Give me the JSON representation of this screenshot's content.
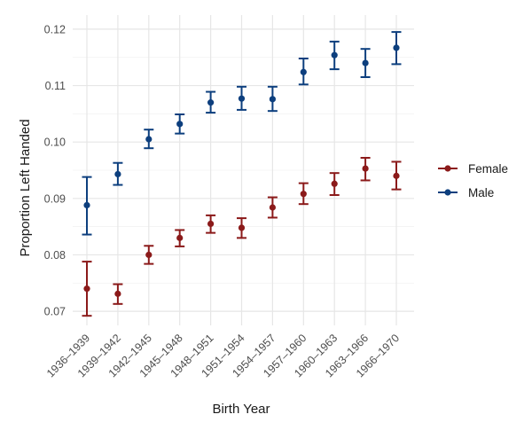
{
  "chart_data": {
    "type": "scatter",
    "title": "",
    "xlabel": "Birth Year",
    "ylabel": "Proportion Left Handed",
    "categories": [
      "1936–1939",
      "1939–1942",
      "1942–1945",
      "1945–1948",
      "1948–1951",
      "1951–1954",
      "1954–1957",
      "1957–1960",
      "1960–1963",
      "1963–1966",
      "1966–1970"
    ],
    "ylim": [
      0.0675,
      0.1225
    ],
    "yticks": [
      0.07,
      0.08,
      0.09,
      0.1,
      0.11,
      0.12
    ],
    "ytick_labels": [
      "0.07",
      "0.08",
      "0.09",
      "0.10",
      "0.11",
      "0.12"
    ],
    "grid": true,
    "legend_position": "right",
    "error_bars": true,
    "series": [
      {
        "name": "Female",
        "color": "#8b1a1a",
        "values": [
          0.074,
          0.0731,
          0.08,
          0.083,
          0.0855,
          0.0848,
          0.0884,
          0.0908,
          0.0926,
          0.0953,
          0.094
        ],
        "lower": [
          0.0692,
          0.0713,
          0.0784,
          0.0815,
          0.0839,
          0.083,
          0.0866,
          0.089,
          0.0906,
          0.0932,
          0.0916
        ],
        "upper": [
          0.0788,
          0.0748,
          0.0816,
          0.0844,
          0.087,
          0.0865,
          0.0902,
          0.0927,
          0.0945,
          0.0972,
          0.0965
        ]
      },
      {
        "name": "Male",
        "color": "#0d3f7e",
        "values": [
          0.0888,
          0.0943,
          0.1005,
          0.1032,
          0.107,
          0.1077,
          0.1076,
          0.1124,
          0.1154,
          0.114,
          0.1167
        ],
        "lower": [
          0.0836,
          0.0924,
          0.0989,
          0.1015,
          0.1052,
          0.1057,
          0.1055,
          0.1102,
          0.1129,
          0.1115,
          0.1138
        ],
        "upper": [
          0.0938,
          0.0963,
          0.1022,
          0.1049,
          0.1089,
          0.1098,
          0.1098,
          0.1148,
          0.1178,
          0.1165,
          0.1195
        ]
      }
    ]
  }
}
